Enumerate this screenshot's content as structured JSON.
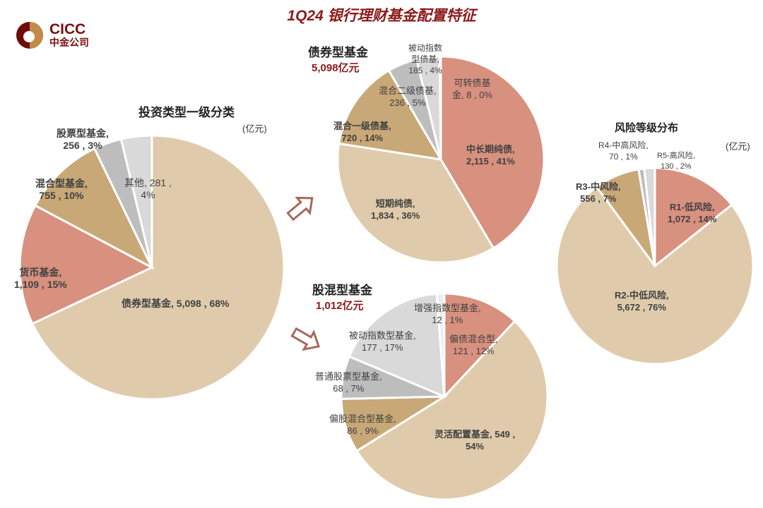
{
  "title": "1Q24 银行理财基金配置特征",
  "logo": {
    "en": "CICC",
    "cn": "中金公司"
  },
  "colors": {
    "salmon": "#D8907F",
    "tan": "#DFCBAB",
    "brown": "#C9A877",
    "grey": "#BDBDBD",
    "lightgrey": "#D9D9D9",
    "lighter": "#EDEDED",
    "accent": "#8B1A1A",
    "arrow": "#A56A5E"
  },
  "chart_data": [
    {
      "type": "pie",
      "title": "投资类型一级分类",
      "unit": "(亿元)",
      "slices": [
        {
          "name": "债券型基金",
          "value": 5098,
          "pct": "68%",
          "label": "债券型基金, 5,098 , 68%",
          "color": "tan"
        },
        {
          "name": "货币基金",
          "value": 1109,
          "pct": "15%",
          "label": "货币基金,\n1,109 , 15%",
          "color": "salmon"
        },
        {
          "name": "混合型基金",
          "value": 755,
          "pct": "10%",
          "label": "混合型基金,\n755 , 10%",
          "color": "brown"
        },
        {
          "name": "股票型基金",
          "value": 256,
          "pct": "3%",
          "label": "股票型基金,\n256 , 3%",
          "color": "grey"
        },
        {
          "name": "其他",
          "value": 281,
          "pct": "4%",
          "label": "其他, 281 ,\n4%",
          "color": "lightgrey"
        }
      ]
    },
    {
      "type": "pie",
      "title": "债券型基金",
      "total": "5,098亿元",
      "slices": [
        {
          "name": "中长期纯债",
          "value": 2115,
          "pct": "41%",
          "label": "中长期纯债,\n2,115 , 41%",
          "color": "salmon"
        },
        {
          "name": "短期纯债",
          "value": 1834,
          "pct": "36%",
          "label": "短期纯债,\n1,834 , 36%",
          "color": "tan"
        },
        {
          "name": "混合一级债基",
          "value": 720,
          "pct": "14%",
          "label": "混合一级债基,\n720 , 14%",
          "color": "brown"
        },
        {
          "name": "混合二级债基",
          "value": 236,
          "pct": "5%",
          "label": "混合二级债基,\n236 , 5%",
          "color": "grey"
        },
        {
          "name": "被动指数型债基",
          "value": 185,
          "pct": "4%",
          "label": "被动指数\n型债基,\n185 , 4%",
          "color": "lightgrey"
        },
        {
          "name": "可转债基金",
          "value": 8,
          "pct": "0%",
          "label": "可转债基\n金, 8 , 0%",
          "color": "lighter"
        }
      ]
    },
    {
      "type": "pie",
      "title": "股混型基金",
      "total": "1,012亿元",
      "slices": [
        {
          "name": "偏债混合型",
          "value": 121,
          "pct": "12%",
          "label": "偏债混合型,\n121 , 12%",
          "color": "salmon"
        },
        {
          "name": "灵活配置基金",
          "value": 549,
          "pct": "54%",
          "label": "灵活配置基金, 549 ,\n54%",
          "color": "tan"
        },
        {
          "name": "偏股混合型基金",
          "value": 86,
          "pct": "9%",
          "label": "偏股混合型基金,\n86 , 9%",
          "color": "brown"
        },
        {
          "name": "普通股票型基金",
          "value": 68,
          "pct": "7%",
          "label": "普通股票型基金,\n68 , 7%",
          "color": "grey"
        },
        {
          "name": "被动指数型基金",
          "value": 177,
          "pct": "17%",
          "label": "被动指数型基金,\n177 , 17%",
          "color": "lightgrey"
        },
        {
          "name": "增强指数型基金",
          "value": 12,
          "pct": "1%",
          "label": "增强指数型基金,\n12 , 1%",
          "color": "lighter"
        }
      ]
    },
    {
      "type": "pie",
      "title": "风险等级分布",
      "unit": "(亿元)",
      "slices": [
        {
          "name": "R1-低风险",
          "value": 1072,
          "pct": "14%",
          "label": "R1-低风险,\n1,072 , 14%",
          "color": "salmon"
        },
        {
          "name": "R2-中低风险",
          "value": 5672,
          "pct": "76%",
          "label": "R2-中低风险,\n5,672 , 76%",
          "color": "tan"
        },
        {
          "name": "R3-中风险",
          "value": 556,
          "pct": "7%",
          "label": "R3-中风险,\n556 , 7%",
          "color": "brown"
        },
        {
          "name": "R4-中高风险",
          "value": 70,
          "pct": "1%",
          "label": "R4-中高风险,\n70 , 1%",
          "color": "grey"
        },
        {
          "name": "R5-高风险",
          "value": 130,
          "pct": "2%",
          "label": "R5-高风险,\n130 , 2%",
          "color": "lightgrey"
        }
      ]
    }
  ]
}
